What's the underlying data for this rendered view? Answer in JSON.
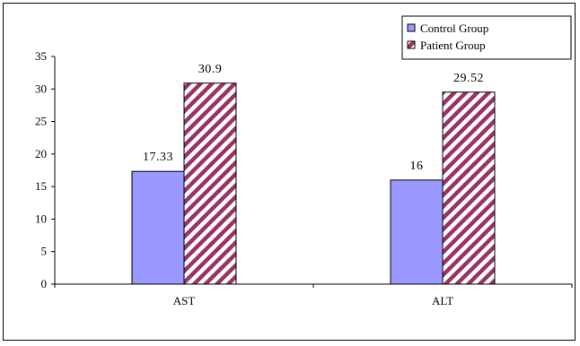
{
  "chart_data": {
    "type": "bar",
    "categories": [
      "AST",
      "ALT"
    ],
    "series": [
      {
        "name": "Control Group",
        "values": [
          17.33,
          16
        ],
        "labels": [
          "17.33",
          "16"
        ],
        "color": "#9999ff",
        "pattern": "solid"
      },
      {
        "name": "Patient Group",
        "values": [
          30.9,
          29.52
        ],
        "labels": [
          "30.9",
          "29.52"
        ],
        "color": "#993366",
        "pattern": "diagonal-stripes"
      }
    ],
    "title": "",
    "xlabel": "",
    "ylabel": "",
    "ylim": [
      0,
      35
    ],
    "yticks": [
      0,
      5,
      10,
      15,
      20,
      25,
      30,
      35
    ],
    "ytick_labels": [
      "0",
      "5",
      "10",
      "15",
      "20",
      "25",
      "30",
      "35"
    ],
    "grid": false,
    "legend": "top-right"
  }
}
